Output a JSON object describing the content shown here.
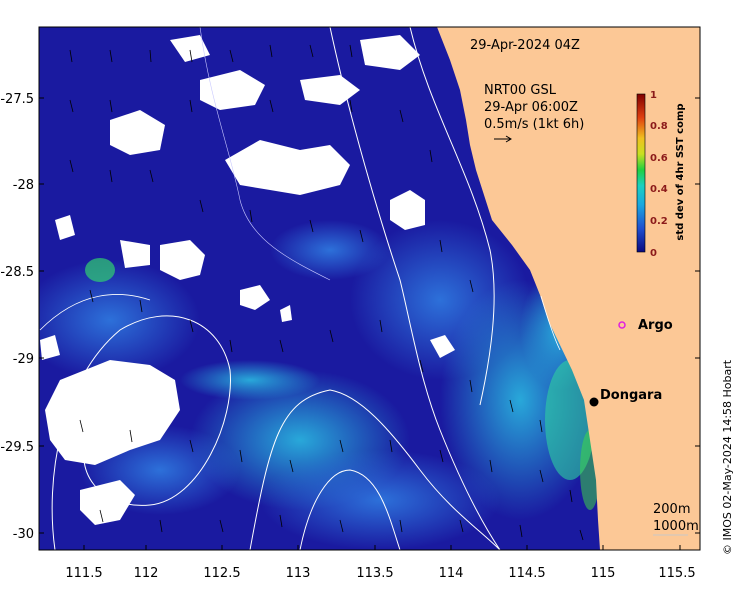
{
  "timestamp": "29-Apr-2024 04Z",
  "current_info": {
    "line1": "NRT00 GSL",
    "line2": "29-Apr 06:00Z",
    "line3": "0.5m/s (1kt 6h)"
  },
  "colorbar": {
    "label": "std dev of 4hr SST comp",
    "ticks": [
      "1",
      "0.8",
      "0.6",
      "0.4",
      "0.2",
      "0"
    ],
    "tick_color": "#8b1a1a"
  },
  "axes": {
    "x_ticks": [
      "111.5",
      "112",
      "112.5",
      "113",
      "113.5",
      "114",
      "114.5",
      "115",
      "115.5"
    ],
    "y_ticks": [
      "-27.5",
      "-28",
      "-28.5",
      "-29",
      "-29.5",
      "-30"
    ]
  },
  "places": {
    "argo": "Argo",
    "dongara": "Dongara"
  },
  "bathymetry": {
    "label_200": "200m",
    "label_1000": "1000m"
  },
  "credit": "© IMOS 02-May-2024 14:58 Hobart",
  "colors": {
    "land": "#fcc896",
    "sea_low": "#1a1aa0",
    "argo_marker": "#e01ee0"
  }
}
